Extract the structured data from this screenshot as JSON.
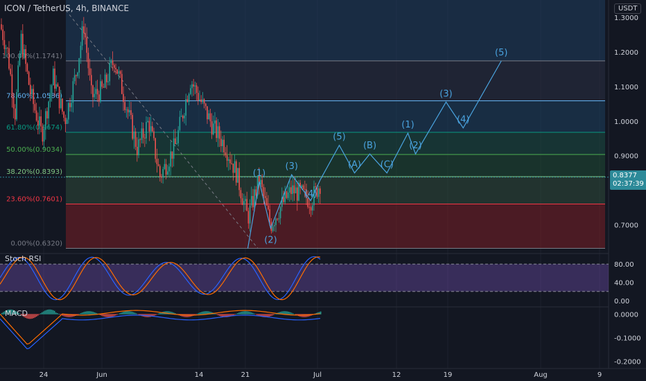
{
  "header": {
    "symbol_title": "ICON / TetherUS, 4h, BINANCE",
    "currency": "USDT"
  },
  "price_tag": {
    "price": "0.8377",
    "countdown": "02:37:39"
  },
  "indicators": {
    "stoch_rsi_label": "Stoch RSI",
    "macd_label": "MACD"
  },
  "colors": {
    "background": "#131722",
    "bull": "#26a69a",
    "bear": "#ef5350",
    "wave": "#4aa3df",
    "stoch_k": "#2962ff",
    "stoch_d": "#ff6d00",
    "stoch_band": "#7e57c2"
  },
  "chart_data": [
    {
      "type": "candlestick",
      "title": "ICON / TetherUS, 4h, BINANCE",
      "ylabel": "USDT",
      "x_ticks": [
        "24",
        "Jun",
        "14",
        "21",
        "Jul",
        "12",
        "19",
        "Aug",
        "9"
      ],
      "y_ticks": [
        1.3,
        1.2,
        1.1,
        1.0,
        0.9,
        0.7
      ],
      "ylim": [
        0.625,
        1.35
      ],
      "current_price": 0.8377,
      "fib_levels": [
        {
          "label": "0.00%(0.6320)",
          "ratio": 0.0,
          "price": 0.632,
          "color": "#787b86"
        },
        {
          "label": "23.60%(0.7601)",
          "ratio": 0.236,
          "price": 0.7601,
          "color": "#f23645"
        },
        {
          "label": "38.20%(0.8393)",
          "ratio": 0.382,
          "price": 0.8393,
          "color": "#81c784"
        },
        {
          "label": "50.00%(0.9034)",
          "ratio": 0.5,
          "price": 0.9034,
          "color": "#4caf50"
        },
        {
          "label": "61.80%(0.9674)",
          "ratio": 0.618,
          "price": 0.9674,
          "color": "#089981"
        },
        {
          "label": "78.60%(1.0586)",
          "ratio": 0.786,
          "price": 1.0586,
          "color": "#64b5f6"
        },
        {
          "label": "100.00%(1.1741)",
          "ratio": 1.0,
          "price": 1.1741,
          "color": "#787b86"
        }
      ],
      "price_path": [
        [
          0,
          1.28
        ],
        [
          0.04,
          1.2
        ],
        [
          0.08,
          1.02
        ],
        [
          0.11,
          1.24
        ],
        [
          0.16,
          1.08
        ],
        [
          0.22,
          0.96
        ],
        [
          0.28,
          1.13
        ],
        [
          0.34,
          1.0
        ],
        [
          0.4,
          1.14
        ],
        [
          0.44,
          1.28
        ],
        [
          0.48,
          1.07
        ],
        [
          0.54,
          1.09
        ],
        [
          0.6,
          1.18
        ],
        [
          0.66,
          1.05
        ],
        [
          0.72,
          0.92
        ],
        [
          0.78,
          1.0
        ],
        [
          0.84,
          0.84
        ],
        [
          0.92,
          0.93
        ],
        [
          1.0,
          1.12
        ],
        [
          1.06,
          1.05
        ],
        [
          1.12,
          0.98
        ],
        [
          1.18,
          0.93
        ],
        [
          1.24,
          0.85
        ],
        [
          1.3,
          0.72
        ],
        [
          1.36,
          0.83
        ],
        [
          1.42,
          0.7
        ],
        [
          1.48,
          0.76
        ],
        [
          1.53,
          0.8
        ],
        [
          1.58,
          0.79
        ],
        [
          1.63,
          0.77
        ],
        [
          1.68,
          0.82
        ]
      ],
      "wave_labels": [
        {
          "label": "(1)",
          "x": 1.36,
          "y": 0.825
        },
        {
          "label": "(2)",
          "x": 1.42,
          "y": 0.632
        },
        {
          "label": "(3)",
          "x": 1.53,
          "y": 0.845
        },
        {
          "label": "(4)",
          "x": 1.63,
          "y": 0.765
        },
        {
          "label": "(5)",
          "x": 1.78,
          "y": 0.93
        },
        {
          "label": "(A)",
          "x": 1.86,
          "y": 0.85
        },
        {
          "label": "(B)",
          "x": 1.94,
          "y": 0.905
        },
        {
          "label": "(C)",
          "x": 2.03,
          "y": 0.85
        },
        {
          "label": "(1)",
          "x": 2.14,
          "y": 0.965
        },
        {
          "label": "(2)",
          "x": 2.18,
          "y": 0.905
        },
        {
          "label": "(3)",
          "x": 2.34,
          "y": 1.055
        },
        {
          "label": "(4)",
          "x": 2.43,
          "y": 0.98
        },
        {
          "label": "(5)",
          "x": 2.63,
          "y": 1.174
        }
      ],
      "projection_path": [
        [
          1.68,
          0.83
        ],
        [
          1.78,
          0.93
        ],
        [
          1.86,
          0.85
        ],
        [
          1.94,
          0.905
        ],
        [
          2.03,
          0.85
        ],
        [
          2.14,
          0.965
        ],
        [
          2.18,
          0.905
        ],
        [
          2.34,
          1.055
        ],
        [
          2.43,
          0.98
        ],
        [
          2.63,
          1.174
        ]
      ]
    },
    {
      "type": "line",
      "title": "Stoch RSI",
      "y_ticks": [
        80,
        40,
        0
      ],
      "ylim": [
        -3,
        103
      ],
      "bands": [
        80,
        20
      ],
      "series": []
    },
    {
      "type": "line",
      "title": "MACD",
      "y_ticks": [
        0.0,
        -0.1,
        -0.2
      ],
      "ylim": [
        -0.23,
        0.03
      ],
      "series": []
    }
  ]
}
